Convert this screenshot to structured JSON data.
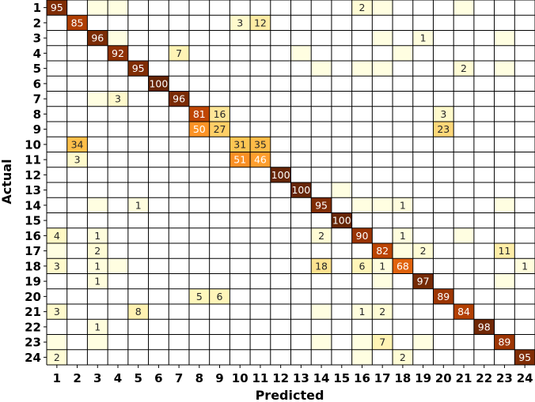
{
  "chart_data": {
    "type": "heatmap",
    "title": "",
    "xlabel": "Predicted",
    "ylabel": "Actual",
    "x_categories": [
      "1",
      "2",
      "3",
      "4",
      "5",
      "6",
      "7",
      "8",
      "9",
      "10",
      "11",
      "12",
      "13",
      "14",
      "15",
      "16",
      "17",
      "18",
      "19",
      "20",
      "21",
      "22",
      "23",
      "24"
    ],
    "y_categories": [
      "1",
      "2",
      "3",
      "4",
      "5",
      "6",
      "7",
      "8",
      "9",
      "10",
      "11",
      "12",
      "13",
      "14",
      "15",
      "16",
      "17",
      "18",
      "19",
      "20",
      "21",
      "22",
      "23",
      "24"
    ],
    "value_range": [
      0,
      100
    ],
    "colormap": "YlOrBr",
    "grid": true,
    "cells": [
      {
        "actual": 1,
        "predicted": 1,
        "value": 95,
        "label": "95"
      },
      {
        "actual": 1,
        "predicted": 3,
        "value": 0.5,
        "label": ""
      },
      {
        "actual": 1,
        "predicted": 4,
        "value": 0.5,
        "label": ""
      },
      {
        "actual": 1,
        "predicted": 16,
        "value": 2,
        "label": "2"
      },
      {
        "actual": 1,
        "predicted": 17,
        "value": 0.5,
        "label": ""
      },
      {
        "actual": 1,
        "predicted": 21,
        "value": 0.5,
        "label": ""
      },
      {
        "actual": 2,
        "predicted": 2,
        "value": 85,
        "label": "85"
      },
      {
        "actual": 2,
        "predicted": 10,
        "value": 3,
        "label": "3"
      },
      {
        "actual": 2,
        "predicted": 11,
        "value": 12,
        "label": "12"
      },
      {
        "actual": 3,
        "predicted": 3,
        "value": 96,
        "label": "96"
      },
      {
        "actual": 3,
        "predicted": 4,
        "value": 0.5,
        "label": ""
      },
      {
        "actual": 3,
        "predicted": 17,
        "value": 0.5,
        "label": ""
      },
      {
        "actual": 3,
        "predicted": 19,
        "value": 1,
        "label": "1"
      },
      {
        "actual": 3,
        "predicted": 23,
        "value": 0.5,
        "label": ""
      },
      {
        "actual": 4,
        "predicted": 4,
        "value": 92,
        "label": "92"
      },
      {
        "actual": 4,
        "predicted": 7,
        "value": 7,
        "label": "7"
      },
      {
        "actual": 4,
        "predicted": 13,
        "value": 0.5,
        "label": ""
      },
      {
        "actual": 4,
        "predicted": 18,
        "value": 0.5,
        "label": ""
      },
      {
        "actual": 5,
        "predicted": 5,
        "value": 95,
        "label": "95"
      },
      {
        "actual": 5,
        "predicted": 14,
        "value": 0.5,
        "label": ""
      },
      {
        "actual": 5,
        "predicted": 16,
        "value": 0.5,
        "label": ""
      },
      {
        "actual": 5,
        "predicted": 17,
        "value": 0.5,
        "label": ""
      },
      {
        "actual": 5,
        "predicted": 21,
        "value": 2,
        "label": "2"
      },
      {
        "actual": 5,
        "predicted": 23,
        "value": 0.5,
        "label": ""
      },
      {
        "actual": 6,
        "predicted": 6,
        "value": 100,
        "label": "100"
      },
      {
        "actual": 7,
        "predicted": 3,
        "value": 0.5,
        "label": ""
      },
      {
        "actual": 7,
        "predicted": 4,
        "value": 3,
        "label": "3"
      },
      {
        "actual": 7,
        "predicted": 7,
        "value": 96,
        "label": "96"
      },
      {
        "actual": 8,
        "predicted": 8,
        "value": 81,
        "label": "81"
      },
      {
        "actual": 8,
        "predicted": 9,
        "value": 16,
        "label": "16"
      },
      {
        "actual": 8,
        "predicted": 20,
        "value": 3,
        "label": "3"
      },
      {
        "actual": 9,
        "predicted": 8,
        "value": 50,
        "label": "50"
      },
      {
        "actual": 9,
        "predicted": 9,
        "value": 27,
        "label": "27"
      },
      {
        "actual": 9,
        "predicted": 20,
        "value": 23,
        "label": "23"
      },
      {
        "actual": 10,
        "predicted": 2,
        "value": 34,
        "label": "34"
      },
      {
        "actual": 10,
        "predicted": 10,
        "value": 31,
        "label": "31"
      },
      {
        "actual": 10,
        "predicted": 11,
        "value": 35,
        "label": "35"
      },
      {
        "actual": 11,
        "predicted": 2,
        "value": 3,
        "label": "3"
      },
      {
        "actual": 11,
        "predicted": 10,
        "value": 51,
        "label": "51"
      },
      {
        "actual": 11,
        "predicted": 11,
        "value": 46,
        "label": "46"
      },
      {
        "actual": 12,
        "predicted": 12,
        "value": 100,
        "label": "100"
      },
      {
        "actual": 13,
        "predicted": 13,
        "value": 100,
        "label": "100"
      },
      {
        "actual": 13,
        "predicted": 15,
        "value": 0.5,
        "label": ""
      },
      {
        "actual": 14,
        "predicted": 3,
        "value": 0.5,
        "label": ""
      },
      {
        "actual": 14,
        "predicted": 5,
        "value": 1,
        "label": "1"
      },
      {
        "actual": 14,
        "predicted": 14,
        "value": 95,
        "label": "95"
      },
      {
        "actual": 14,
        "predicted": 16,
        "value": 0.5,
        "label": ""
      },
      {
        "actual": 14,
        "predicted": 17,
        "value": 0.5,
        "label": ""
      },
      {
        "actual": 14,
        "predicted": 18,
        "value": 1,
        "label": "1"
      },
      {
        "actual": 14,
        "predicted": 23,
        "value": 0.5,
        "label": ""
      },
      {
        "actual": 15,
        "predicted": 15,
        "value": 100,
        "label": "100"
      },
      {
        "actual": 16,
        "predicted": 1,
        "value": 4,
        "label": "4"
      },
      {
        "actual": 16,
        "predicted": 3,
        "value": 1,
        "label": "1"
      },
      {
        "actual": 16,
        "predicted": 14,
        "value": 2,
        "label": "2"
      },
      {
        "actual": 16,
        "predicted": 16,
        "value": 90,
        "label": "90"
      },
      {
        "actual": 16,
        "predicted": 18,
        "value": 1,
        "label": "1"
      },
      {
        "actual": 16,
        "predicted": 21,
        "value": 0.5,
        "label": ""
      },
      {
        "actual": 17,
        "predicted": 1,
        "value": 0.5,
        "label": ""
      },
      {
        "actual": 17,
        "predicted": 3,
        "value": 2,
        "label": "2"
      },
      {
        "actual": 17,
        "predicted": 17,
        "value": 82,
        "label": "82"
      },
      {
        "actual": 17,
        "predicted": 18,
        "value": 0.5,
        "label": ""
      },
      {
        "actual": 17,
        "predicted": 19,
        "value": 2,
        "label": "2"
      },
      {
        "actual": 17,
        "predicted": 23,
        "value": 11,
        "label": "11"
      },
      {
        "actual": 18,
        "predicted": 1,
        "value": 3,
        "label": "3"
      },
      {
        "actual": 18,
        "predicted": 3,
        "value": 1,
        "label": "1"
      },
      {
        "actual": 18,
        "predicted": 4,
        "value": 0.5,
        "label": ""
      },
      {
        "actual": 18,
        "predicted": 14,
        "value": 18,
        "label": "18"
      },
      {
        "actual": 18,
        "predicted": 16,
        "value": 6,
        "label": "6"
      },
      {
        "actual": 18,
        "predicted": 17,
        "value": 1,
        "label": "1"
      },
      {
        "actual": 18,
        "predicted": 18,
        "value": 68,
        "label": "68"
      },
      {
        "actual": 18,
        "predicted": 24,
        "value": 1,
        "label": "1"
      },
      {
        "actual": 19,
        "predicted": 3,
        "value": 1,
        "label": "1"
      },
      {
        "actual": 19,
        "predicted": 17,
        "value": 0.5,
        "label": ""
      },
      {
        "actual": 19,
        "predicted": 19,
        "value": 97,
        "label": "97"
      },
      {
        "actual": 19,
        "predicted": 23,
        "value": 0.5,
        "label": ""
      },
      {
        "actual": 20,
        "predicted": 8,
        "value": 5,
        "label": "5"
      },
      {
        "actual": 20,
        "predicted": 9,
        "value": 6,
        "label": "6"
      },
      {
        "actual": 20,
        "predicted": 20,
        "value": 89,
        "label": "89"
      },
      {
        "actual": 21,
        "predicted": 1,
        "value": 3,
        "label": "3"
      },
      {
        "actual": 21,
        "predicted": 5,
        "value": 8,
        "label": "8"
      },
      {
        "actual": 21,
        "predicted": 14,
        "value": 0.5,
        "label": ""
      },
      {
        "actual": 21,
        "predicted": 16,
        "value": 1,
        "label": "1"
      },
      {
        "actual": 21,
        "predicted": 17,
        "value": 2,
        "label": "2"
      },
      {
        "actual": 21,
        "predicted": 21,
        "value": 84,
        "label": "84"
      },
      {
        "actual": 22,
        "predicted": 3,
        "value": 1,
        "label": "1"
      },
      {
        "actual": 22,
        "predicted": 22,
        "value": 98,
        "label": "98"
      },
      {
        "actual": 23,
        "predicted": 1,
        "value": 0.5,
        "label": ""
      },
      {
        "actual": 23,
        "predicted": 3,
        "value": 0.5,
        "label": ""
      },
      {
        "actual": 23,
        "predicted": 14,
        "value": 0.5,
        "label": ""
      },
      {
        "actual": 23,
        "predicted": 16,
        "value": 0.5,
        "label": ""
      },
      {
        "actual": 23,
        "predicted": 17,
        "value": 7,
        "label": "7"
      },
      {
        "actual": 23,
        "predicted": 19,
        "value": 0.5,
        "label": ""
      },
      {
        "actual": 23,
        "predicted": 23,
        "value": 89,
        "label": "89"
      },
      {
        "actual": 24,
        "predicted": 1,
        "value": 2,
        "label": "2"
      },
      {
        "actual": 24,
        "predicted": 16,
        "value": 0.5,
        "label": ""
      },
      {
        "actual": 24,
        "predicted": 18,
        "value": 2,
        "label": "2"
      },
      {
        "actual": 24,
        "predicted": 24,
        "value": 95,
        "label": "95"
      }
    ]
  }
}
